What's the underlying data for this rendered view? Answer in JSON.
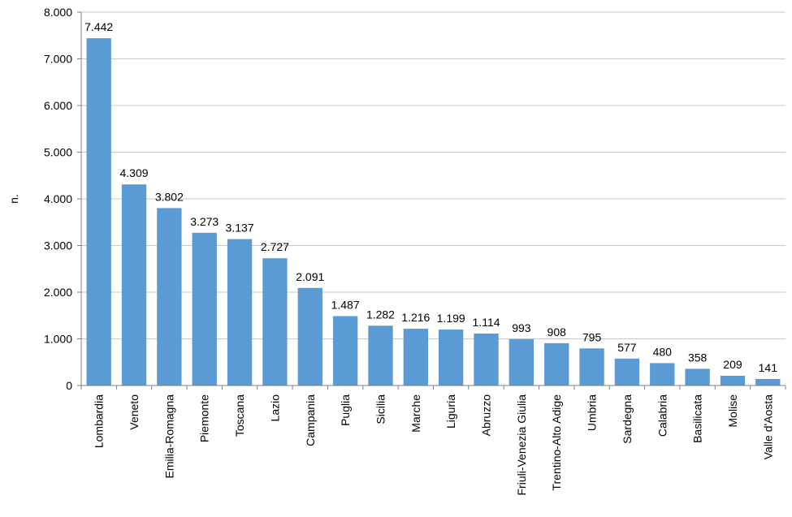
{
  "chart_data": {
    "type": "bar",
    "title": "",
    "xlabel": "",
    "ylabel": "n.",
    "ylim": [
      0,
      8000
    ],
    "yticks": [
      {
        "value": 0,
        "label": "0"
      },
      {
        "value": 1000,
        "label": "1.000"
      },
      {
        "value": 2000,
        "label": "2.000"
      },
      {
        "value": 3000,
        "label": "3.000"
      },
      {
        "value": 4000,
        "label": "4.000"
      },
      {
        "value": 5000,
        "label": "5.000"
      },
      {
        "value": 6000,
        "label": "6.000"
      },
      {
        "value": 7000,
        "label": "7.000"
      },
      {
        "value": 8000,
        "label": "8.000"
      }
    ],
    "grid": true,
    "legend": "none",
    "bar_color": "#5b9bd5",
    "categories": [
      "Lombardia",
      "Veneto",
      "Emilia-Romagna",
      "Piemonte",
      "Toscana",
      "Lazio",
      "Campania",
      "Puglia",
      "Sicilia",
      "Marche",
      "Liguria",
      "Abruzzo",
      "Friuli-Venezia Giulia",
      "Trentino-Alto Adige",
      "Umbria",
      "Sardegna",
      "Calabria",
      "Basilicata",
      "Molise",
      "Valle d'Aosta"
    ],
    "values": [
      7442,
      4309,
      3802,
      3273,
      3137,
      2727,
      2091,
      1487,
      1282,
      1216,
      1199,
      1114,
      993,
      908,
      795,
      577,
      480,
      358,
      209,
      141
    ],
    "value_labels": [
      "7.442",
      "4.309",
      "3.802",
      "3.273",
      "3.137",
      "2.727",
      "2.091",
      "1.487",
      "1.282",
      "1.216",
      "1.199",
      "1.114",
      "993",
      "908",
      "795",
      "577",
      "480",
      "358",
      "209",
      "141"
    ]
  }
}
